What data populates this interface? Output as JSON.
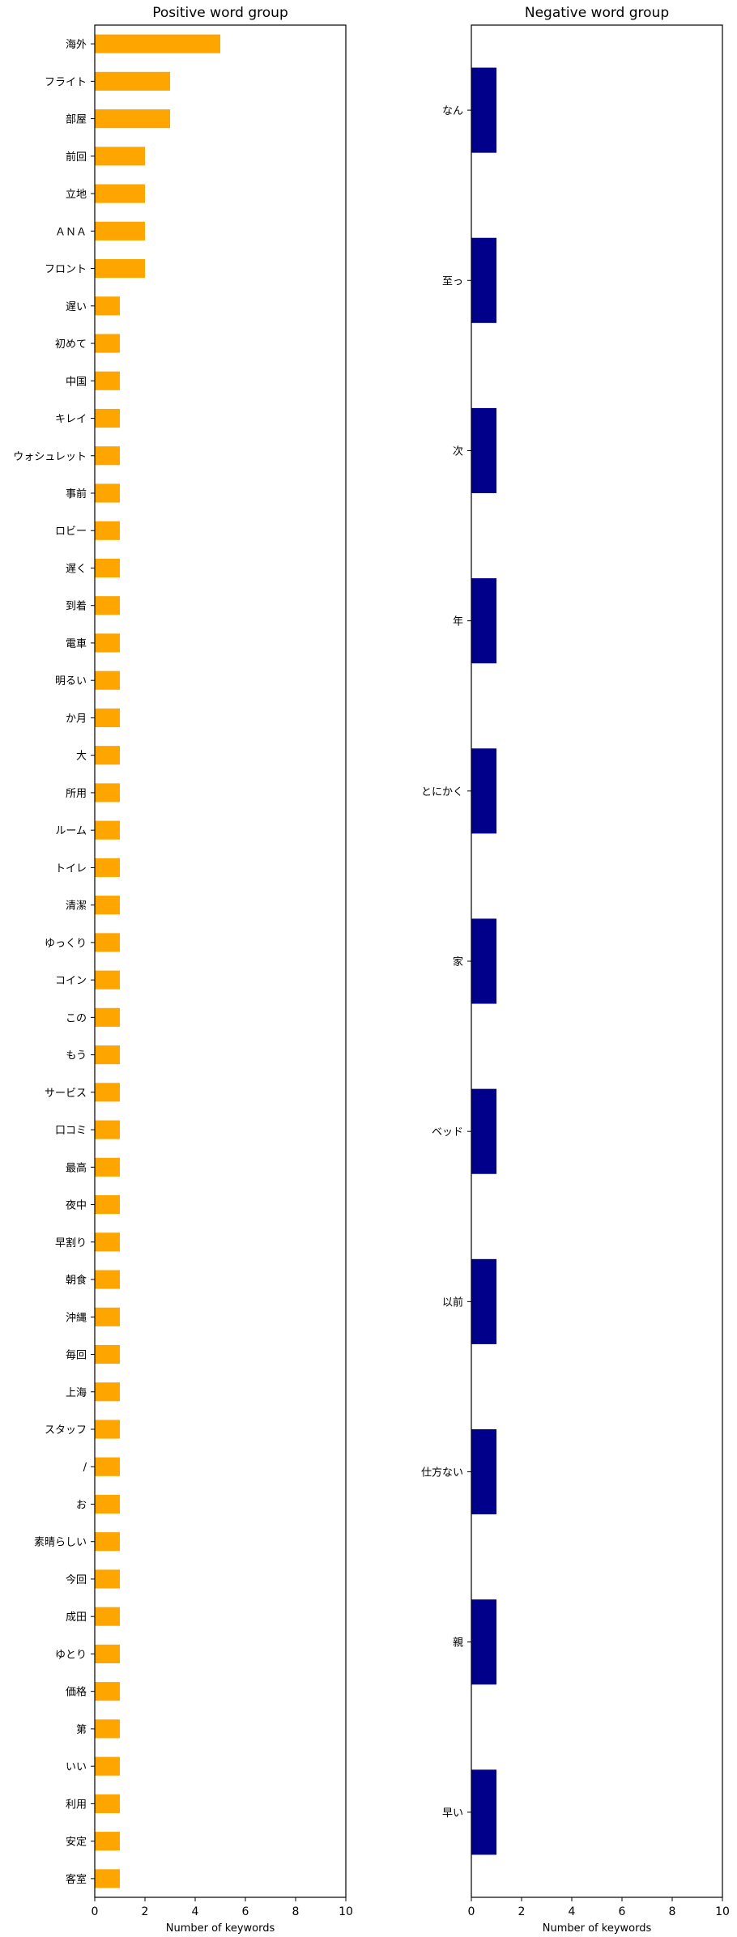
{
  "chart_data": [
    {
      "type": "bar",
      "orientation": "horizontal",
      "title": "Positive word group",
      "xlabel": "Number of keywords",
      "ylabel": "",
      "xlim": [
        0,
        10
      ],
      "xticks": [
        0,
        2,
        4,
        6,
        8,
        10
      ],
      "grid": false,
      "color": "#FFA500",
      "categories": [
        "海外",
        "フライト",
        "部屋",
        "前回",
        "立地",
        "ＡＮＡ",
        "フロント",
        "遅い",
        "初めて",
        "中国",
        "キレイ",
        "ウォシュレット",
        "事前",
        "ロビー",
        "遅く",
        "到着",
        "電車",
        "明るい",
        "か月",
        "大",
        "所用",
        "ルーム",
        "トイレ",
        "清潔",
        "ゆっくり",
        "コイン",
        "この",
        "もう",
        "サービス",
        "口コミ",
        "最高",
        "夜中",
        "早割り",
        "朝食",
        "沖縄",
        "毎回",
        "上海",
        "スタッフ",
        "/",
        "お",
        "素晴らしい",
        "今回",
        "成田",
        "ゆとり",
        "価格",
        "第",
        "いい",
        "利用",
        "安定",
        "客室"
      ],
      "values": [
        5,
        3,
        3,
        2,
        2,
        2,
        2,
        1,
        1,
        1,
        1,
        1,
        1,
        1,
        1,
        1,
        1,
        1,
        1,
        1,
        1,
        1,
        1,
        1,
        1,
        1,
        1,
        1,
        1,
        1,
        1,
        1,
        1,
        1,
        1,
        1,
        1,
        1,
        1,
        1,
        1,
        1,
        1,
        1,
        1,
        1,
        1,
        1,
        1,
        1
      ]
    },
    {
      "type": "bar",
      "orientation": "horizontal",
      "title": "Negative word group",
      "xlabel": "Number of keywords",
      "ylabel": "",
      "xlim": [
        0,
        10
      ],
      "xticks": [
        0,
        2,
        4,
        6,
        8,
        10
      ],
      "grid": false,
      "color": "#00008B",
      "categories": [
        "なん",
        "至っ",
        "次",
        "年",
        "とにかく",
        "家",
        "ベッド",
        "以前",
        "仕方ない",
        "親",
        "早い"
      ],
      "values": [
        1,
        1,
        1,
        1,
        1,
        1,
        1,
        1,
        1,
        1,
        1
      ]
    }
  ]
}
